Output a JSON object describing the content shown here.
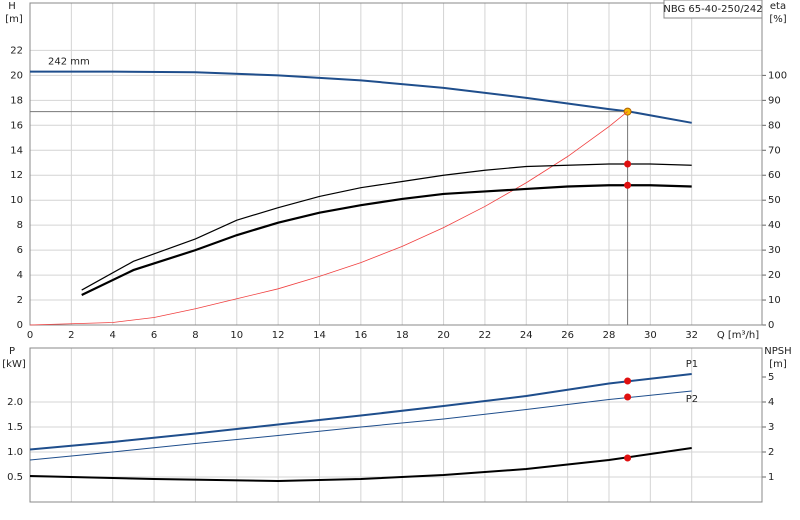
{
  "chart_data": [
    {
      "type": "line",
      "title": "NBG 65-40-250/242",
      "y_label": "H",
      "y_unit": "[m]",
      "y2_label": "eta",
      "y2_unit": "[%]",
      "x_label": "Q [m³/h]",
      "xlim": [
        0,
        35.4
      ],
      "xticks": [
        0,
        2,
        4,
        6,
        8,
        10,
        12,
        14,
        16,
        18,
        20,
        22,
        24,
        26,
        28,
        30,
        32
      ],
      "ylim": [
        0,
        25.8
      ],
      "yticks": [
        0,
        2,
        4,
        6,
        8,
        10,
        12,
        14,
        16,
        18,
        20,
        22
      ],
      "y2lim": [
        0,
        129
      ],
      "y2ticks": [
        0,
        10,
        20,
        30,
        40,
        50,
        60,
        70,
        80,
        90,
        100
      ],
      "grid": true,
      "duty_lines": true,
      "series": [
        {
          "name": "242 mm",
          "color": "#1f4e8c",
          "line_width": 2,
          "x": [
            0,
            4,
            8,
            12,
            16,
            20,
            24,
            28,
            29,
            32
          ],
          "values": [
            20.3,
            20.3,
            20.25,
            20.0,
            19.6,
            19.0,
            18.2,
            17.3,
            17.1,
            16.2
          ],
          "marker": {
            "x": 28.9,
            "y": 17.1,
            "color": "#f5b800"
          }
        },
        {
          "color": "#f04040",
          "line_width": 0.8,
          "x": [
            0,
            4,
            6,
            8,
            10,
            12,
            14,
            16,
            18,
            20,
            22,
            24,
            26,
            28,
            28.9
          ],
          "values": [
            0,
            0.2,
            0.6,
            1.3,
            2.1,
            2.9,
            3.9,
            5.0,
            6.3,
            7.8,
            9.5,
            11.4,
            13.5,
            15.9,
            17.1
          ]
        },
        {
          "color": "#000000",
          "line_width": 1.2,
          "axis": "y2",
          "x": [
            2.5,
            5,
            8,
            10,
            12,
            14,
            16,
            18,
            20,
            22,
            24,
            26,
            28,
            30,
            32
          ],
          "values": [
            14,
            25.5,
            34.5,
            42,
            47,
            51.5,
            55,
            57.5,
            60,
            62,
            63.5,
            64,
            64.5,
            64.5,
            64
          ],
          "marker": {
            "x": 28.9,
            "y": 64.5,
            "color": "#e01010"
          }
        },
        {
          "color": "#000000",
          "line_width": 2.2,
          "axis": "y2",
          "x": [
            2.5,
            5,
            8,
            10,
            12,
            14,
            16,
            18,
            20,
            22,
            24,
            26,
            28,
            30,
            32
          ],
          "values": [
            12,
            22,
            30,
            36,
            41,
            45,
            48,
            50.5,
            52.5,
            53.5,
            54.5,
            55.5,
            56,
            56,
            55.5
          ],
          "marker": {
            "x": 28.9,
            "y": 56,
            "color": "#e01010"
          }
        }
      ]
    },
    {
      "type": "line",
      "y_label": "P",
      "y_unit": "[kW]",
      "y2_label": "NPSH",
      "y2_unit": "[m]",
      "xlim": [
        0,
        35.4
      ],
      "xticks": [
        0,
        2,
        4,
        6,
        8,
        10,
        12,
        14,
        16,
        18,
        20,
        22,
        24,
        26,
        28,
        30,
        32
      ],
      "ylim": [
        0,
        3.08
      ],
      "yticks": [
        {
          "value": 0.5,
          "label": "0.5"
        },
        {
          "value": 1,
          "label": "1.0"
        },
        {
          "value": 1.5,
          "label": "1.5"
        },
        {
          "value": 2,
          "label": "2.0"
        }
      ],
      "y2lim": [
        0,
        6.16
      ],
      "y2ticks": [
        1,
        2,
        3,
        4,
        5
      ],
      "grid": true,
      "duty_lines": false,
      "series": [
        {
          "name": "P1",
          "color": "#1f4e8c",
          "line_width": 2,
          "x": [
            0,
            4,
            8,
            12,
            16,
            20,
            24,
            28,
            32
          ],
          "values": [
            1.05,
            1.2,
            1.37,
            1.55,
            1.73,
            1.92,
            2.12,
            2.37,
            2.56
          ],
          "marker": {
            "x": 28.9,
            "y": 2.42,
            "color": "#e01010"
          }
        },
        {
          "name": "P2",
          "color": "#1f4e8c",
          "line_width": 1,
          "x": [
            0,
            4,
            8,
            12,
            16,
            20,
            24,
            28,
            32
          ],
          "values": [
            0.84,
            1.0,
            1.17,
            1.33,
            1.5,
            1.66,
            1.85,
            2.05,
            2.22
          ],
          "marker": {
            "x": 28.9,
            "y": 2.1,
            "color": "#e01010"
          }
        },
        {
          "color": "#000000",
          "line_width": 2,
          "axis": "y2",
          "x": [
            0,
            6,
            12,
            16,
            20,
            24,
            28,
            32
          ],
          "values": [
            1.04,
            0.92,
            0.84,
            0.92,
            1.08,
            1.32,
            1.68,
            2.16
          ],
          "marker": {
            "x": 28.9,
            "y": 1.76,
            "color": "#e01010"
          }
        }
      ]
    }
  ]
}
